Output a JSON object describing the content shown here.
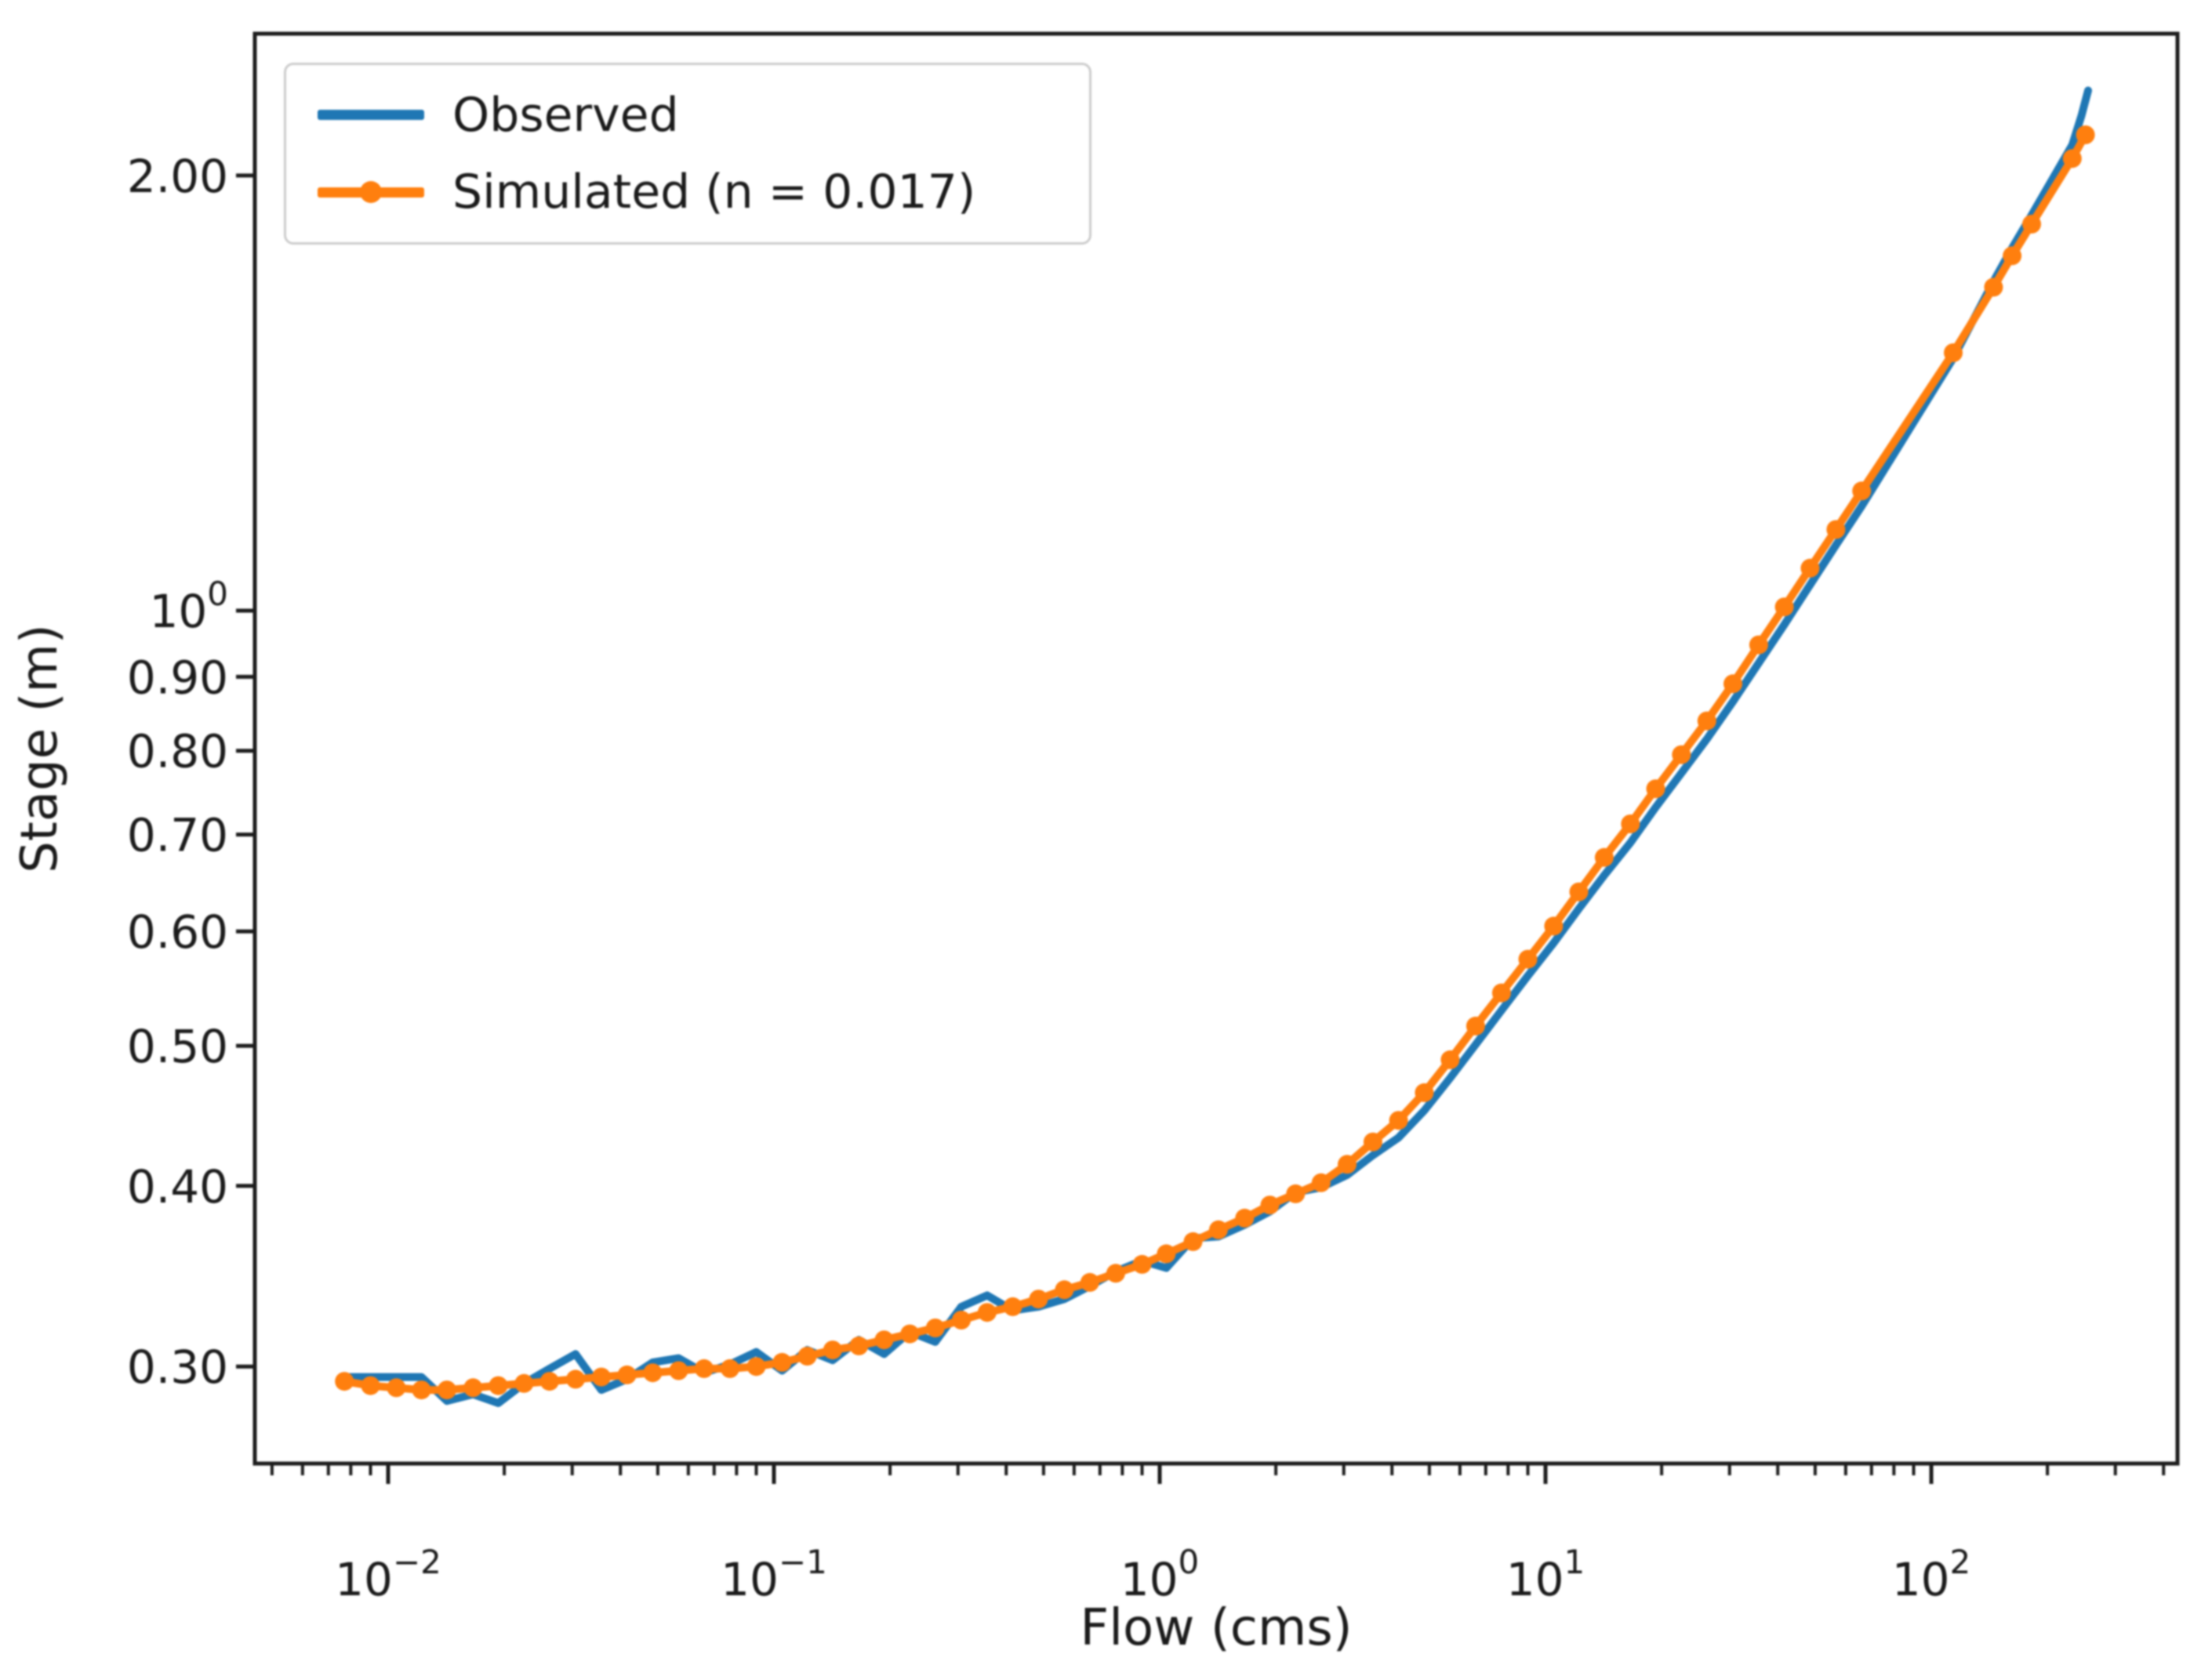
{
  "figure": {
    "background": "#ffffff",
    "frame_color": "#1c1c1c",
    "text_color": "#1a1a1a"
  },
  "axes": {
    "xlabel": "Flow (cms)",
    "ylabel": "Stage (m)",
    "xscale": "log",
    "yscale": "log",
    "xlim": [
      0.0045,
      434
    ],
    "ylim": [
      0.257,
      2.51
    ],
    "x_major_ticks": [
      {
        "value": 0.01,
        "base": "10",
        "exp": "−2"
      },
      {
        "value": 0.1,
        "base": "10",
        "exp": "−1"
      },
      {
        "value": 1,
        "base": "10",
        "exp": "0"
      },
      {
        "value": 10,
        "base": "10",
        "exp": "1"
      },
      {
        "value": 100,
        "base": "10",
        "exp": "2"
      }
    ],
    "y_major_ticks": [
      {
        "value": 2.0,
        "text": "2.00"
      },
      {
        "value": 1.0,
        "base": "10",
        "exp": "0"
      },
      {
        "value": 0.9,
        "text": "0.90"
      },
      {
        "value": 0.8,
        "text": "0.80"
      },
      {
        "value": 0.7,
        "text": "0.70"
      },
      {
        "value": 0.6,
        "text": "0.60"
      },
      {
        "value": 0.5,
        "text": "0.50"
      },
      {
        "value": 0.4,
        "text": "0.40"
      },
      {
        "value": 0.3,
        "text": "0.30"
      }
    ]
  },
  "legend": {
    "border_color": "#cccccc",
    "items": [
      {
        "label": "Observed",
        "color": "#1f77b4",
        "marker": false
      },
      {
        "label": "Simulated (n = 0.017)",
        "color": "#ff7f0e",
        "marker": true
      }
    ]
  },
  "chart_data": {
    "type": "line",
    "title": "",
    "xlabel": "Flow (cms)",
    "ylabel": "Stage (m)",
    "xscale": "log",
    "yscale": "log",
    "xlim": [
      0.0045,
      434
    ],
    "ylim": [
      0.257,
      2.51
    ],
    "legend_position": "upper left",
    "grid": false,
    "series": [
      {
        "name": "Observed",
        "color": "#1f77b4",
        "marker": "none",
        "linewidth": 10,
        "points": [
          [
            0.0077,
            0.295
          ],
          [
            0.009,
            0.295
          ],
          [
            0.0105,
            0.295
          ],
          [
            0.0122,
            0.295
          ],
          [
            0.0142,
            0.284
          ],
          [
            0.0166,
            0.287
          ],
          [
            0.0193,
            0.283
          ],
          [
            0.0225,
            0.292
          ],
          [
            0.0262,
            0.299
          ],
          [
            0.0306,
            0.306
          ],
          [
            0.0357,
            0.289
          ],
          [
            0.0416,
            0.294
          ],
          [
            0.0485,
            0.302
          ],
          [
            0.0566,
            0.304
          ],
          [
            0.0659,
            0.297
          ],
          [
            0.0769,
            0.301
          ],
          [
            0.09,
            0.307
          ],
          [
            0.105,
            0.298
          ],
          [
            0.122,
            0.308
          ],
          [
            0.142,
            0.303
          ],
          [
            0.166,
            0.313
          ],
          [
            0.193,
            0.306
          ],
          [
            0.225,
            0.317
          ],
          [
            0.262,
            0.312
          ],
          [
            0.306,
            0.33
          ],
          [
            0.357,
            0.336
          ],
          [
            0.416,
            0.328
          ],
          [
            0.485,
            0.33
          ],
          [
            0.566,
            0.334
          ],
          [
            0.659,
            0.341
          ],
          [
            0.769,
            0.349
          ],
          [
            0.9,
            0.355
          ],
          [
            1.04,
            0.351
          ],
          [
            1.22,
            0.368
          ],
          [
            1.42,
            0.369
          ],
          [
            1.66,
            0.376
          ],
          [
            1.93,
            0.384
          ],
          [
            2.25,
            0.396
          ],
          [
            2.62,
            0.399
          ],
          [
            3.06,
            0.407
          ],
          [
            3.57,
            0.42
          ],
          [
            4.16,
            0.432
          ],
          [
            4.85,
            0.451
          ],
          [
            5.66,
            0.475
          ],
          [
            6.59,
            0.501
          ],
          [
            7.69,
            0.529
          ],
          [
            9.0,
            0.559
          ],
          [
            10.5,
            0.589
          ],
          [
            12.2,
            0.622
          ],
          [
            14.2,
            0.656
          ],
          [
            16.6,
            0.691
          ],
          [
            19.3,
            0.731
          ],
          [
            22.5,
            0.772
          ],
          [
            26.2,
            0.815
          ],
          [
            30.6,
            0.865
          ],
          [
            35.7,
            0.92
          ],
          [
            41.6,
            0.978
          ],
          [
            48.5,
            1.042
          ],
          [
            56.6,
            1.11
          ],
          [
            66,
            1.181
          ],
          [
            114,
            1.495
          ],
          [
            145,
            1.69
          ],
          [
            162,
            1.782
          ],
          [
            182,
            1.878
          ],
          [
            232,
            2.1
          ],
          [
            245,
            2.2
          ],
          [
            255,
            2.29
          ]
        ]
      },
      {
        "name": "Simulated (n = 0.017)",
        "color": "#ff7f0e",
        "marker": "circle",
        "linewidth": 10,
        "points": [
          [
            0.0077,
            0.293
          ],
          [
            0.009,
            0.291
          ],
          [
            0.0105,
            0.29
          ],
          [
            0.0122,
            0.289
          ],
          [
            0.0142,
            0.289
          ],
          [
            0.0166,
            0.29
          ],
          [
            0.0193,
            0.291
          ],
          [
            0.0225,
            0.292
          ],
          [
            0.0262,
            0.293
          ],
          [
            0.0306,
            0.294
          ],
          [
            0.0357,
            0.295
          ],
          [
            0.0416,
            0.296
          ],
          [
            0.0485,
            0.297
          ],
          [
            0.0566,
            0.298
          ],
          [
            0.0659,
            0.299
          ],
          [
            0.0769,
            0.299
          ],
          [
            0.09,
            0.3
          ],
          [
            0.105,
            0.302
          ],
          [
            0.122,
            0.305
          ],
          [
            0.142,
            0.308
          ],
          [
            0.166,
            0.31
          ],
          [
            0.193,
            0.313
          ],
          [
            0.225,
            0.316
          ],
          [
            0.262,
            0.319
          ],
          [
            0.306,
            0.323
          ],
          [
            0.357,
            0.327
          ],
          [
            0.416,
            0.33
          ],
          [
            0.485,
            0.334
          ],
          [
            0.566,
            0.339
          ],
          [
            0.659,
            0.343
          ],
          [
            0.769,
            0.348
          ],
          [
            0.9,
            0.353
          ],
          [
            1.04,
            0.359
          ],
          [
            1.22,
            0.366
          ],
          [
            1.42,
            0.373
          ],
          [
            1.66,
            0.38
          ],
          [
            1.93,
            0.388
          ],
          [
            2.25,
            0.395
          ],
          [
            2.62,
            0.402
          ],
          [
            3.06,
            0.414
          ],
          [
            3.57,
            0.429
          ],
          [
            4.16,
            0.444
          ],
          [
            4.85,
            0.464
          ],
          [
            5.66,
            0.489
          ],
          [
            6.59,
            0.516
          ],
          [
            7.69,
            0.544
          ],
          [
            9.0,
            0.574
          ],
          [
            10.5,
            0.605
          ],
          [
            12.2,
            0.639
          ],
          [
            14.2,
            0.675
          ],
          [
            16.6,
            0.712
          ],
          [
            19.3,
            0.753
          ],
          [
            22.5,
            0.795
          ],
          [
            26.2,
            0.839
          ],
          [
            30.6,
            0.89
          ],
          [
            35.7,
            0.947
          ],
          [
            41.6,
            1.006
          ],
          [
            48.5,
            1.07
          ],
          [
            56.6,
            1.138
          ],
          [
            66,
            1.21
          ],
          [
            114,
            1.508
          ],
          [
            145,
            1.674
          ],
          [
            162,
            1.76
          ],
          [
            182,
            1.851
          ],
          [
            232,
            2.055
          ],
          [
            251,
            2.134
          ]
        ]
      }
    ]
  }
}
